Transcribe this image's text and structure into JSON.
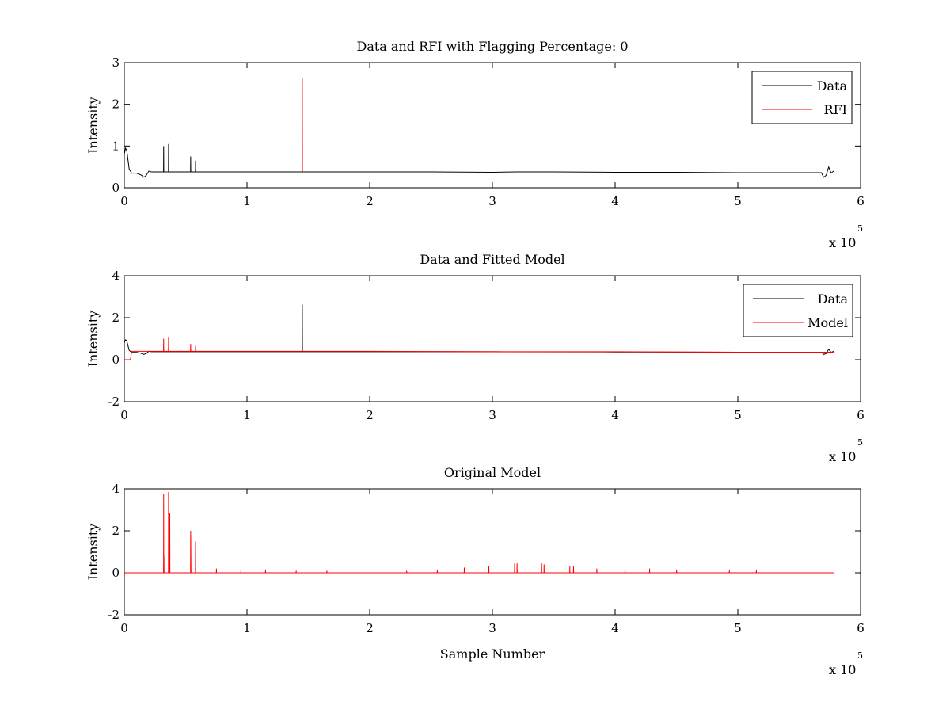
{
  "figure": {
    "background": "#ffffff"
  },
  "chart_data": [
    {
      "type": "line",
      "title": "Data and RFI with Flagging Percentage: 0",
      "xlabel": "",
      "ylabel": "Intensity",
      "xlim": [
        0,
        6
      ],
      "ylim": [
        0,
        3
      ],
      "x_ticks": [
        "0",
        "1",
        "2",
        "3",
        "4",
        "5",
        "6"
      ],
      "y_ticks": [
        "0",
        "1",
        "2",
        "3"
      ],
      "x_multiplier": {
        "base": "x 10",
        "exponent": "5"
      },
      "legend": {
        "placement": "top-right",
        "entries": [
          "Data",
          "RFI"
        ]
      },
      "grid": false,
      "series": [
        {
          "name": "Data",
          "color": "#000000",
          "x": [
            0,
            0.01,
            0.02,
            0.04,
            0.06,
            0.1,
            0.14,
            0.16,
            0.18,
            0.2,
            0.22,
            0.3,
            0.32,
            0.321,
            0.322,
            0.35,
            0.36,
            0.361,
            0.362,
            0.5,
            0.54,
            0.541,
            0.542,
            0.57,
            0.58,
            0.581,
            0.582,
            1.0,
            1.45,
            1.451,
            1.452,
            2.0,
            2.5,
            3.0,
            3.2,
            3.4,
            3.5,
            4.0,
            4.5,
            5.0,
            5.5,
            5.68,
            5.7,
            5.72,
            5.74,
            5.76,
            5.78
          ],
          "y": [
            0.8,
            0.95,
            0.9,
            0.45,
            0.35,
            0.35,
            0.3,
            0.25,
            0.3,
            0.4,
            0.38,
            0.38,
            0.38,
            1.0,
            0.38,
            0.38,
            0.38,
            1.05,
            0.38,
            0.38,
            0.38,
            0.75,
            0.38,
            0.38,
            0.38,
            0.65,
            0.38,
            0.38,
            0.38,
            0.38,
            0.38,
            0.38,
            0.38,
            0.37,
            0.38,
            0.38,
            0.38,
            0.37,
            0.37,
            0.36,
            0.36,
            0.36,
            0.25,
            0.3,
            0.5,
            0.35,
            0.4
          ]
        },
        {
          "name": "RFI",
          "color": "#ff0000",
          "x": [
            1.45,
            1.451,
            1.452
          ],
          "y": [
            0.38,
            2.62,
            0.38
          ]
        }
      ]
    },
    {
      "type": "line",
      "title": "Data and Fitted Model",
      "xlabel": "",
      "ylabel": "Intensity",
      "xlim": [
        0,
        6
      ],
      "ylim": [
        -2,
        4
      ],
      "x_ticks": [
        "0",
        "1",
        "2",
        "3",
        "4",
        "5",
        "6"
      ],
      "y_ticks": [
        "-2",
        "0",
        "2",
        "4"
      ],
      "x_multiplier": {
        "base": "x 10",
        "exponent": "5"
      },
      "legend": {
        "placement": "top-right",
        "entries": [
          "Data",
          "Model"
        ]
      },
      "grid": false,
      "series": [
        {
          "name": "Data",
          "color": "#000000",
          "x": [
            0,
            0.01,
            0.02,
            0.04,
            0.06,
            0.1,
            0.14,
            0.16,
            0.18,
            0.2,
            0.22,
            0.5,
            1.0,
            1.45,
            1.451,
            1.452,
            2.0,
            3.0,
            4.0,
            5.0,
            5.5,
            5.68,
            5.7,
            5.72,
            5.74,
            5.76,
            5.78
          ],
          "y": [
            0.8,
            0.95,
            0.9,
            0.45,
            0.35,
            0.35,
            0.3,
            0.25,
            0.3,
            0.4,
            0.38,
            0.38,
            0.38,
            0.38,
            2.62,
            0.38,
            0.38,
            0.38,
            0.37,
            0.36,
            0.36,
            0.36,
            0.25,
            0.3,
            0.5,
            0.35,
            0.4
          ]
        },
        {
          "name": "Model",
          "color": "#ff0000",
          "x": [
            0,
            0.05,
            0.06,
            0.3,
            0.32,
            0.321,
            0.322,
            0.35,
            0.36,
            0.361,
            0.362,
            0.5,
            0.54,
            0.541,
            0.542,
            0.57,
            0.58,
            0.581,
            0.582,
            1.0,
            2.0,
            3.0,
            4.0,
            5.0,
            5.5,
            5.78
          ],
          "y": [
            0,
            0,
            0.4,
            0.4,
            0.4,
            1.0,
            0.4,
            0.4,
            0.4,
            1.05,
            0.4,
            0.4,
            0.4,
            0.75,
            0.4,
            0.4,
            0.4,
            0.65,
            0.4,
            0.4,
            0.4,
            0.38,
            0.38,
            0.36,
            0.36,
            0.36
          ]
        }
      ]
    },
    {
      "type": "line",
      "title": "Original Model",
      "xlabel": "Sample Number",
      "ylabel": "Intensity",
      "xlim": [
        0,
        6
      ],
      "ylim": [
        -2,
        4
      ],
      "x_ticks": [
        "0",
        "1",
        "2",
        "3",
        "4",
        "5",
        "6"
      ],
      "y_ticks": [
        "-2",
        "0",
        "2",
        "4"
      ],
      "x_multiplier": {
        "base": "x 10",
        "exponent": "5"
      },
      "grid": false,
      "series": [
        {
          "name": "",
          "color": "#ff0000",
          "x": [
            0,
            0.32,
            0.321,
            0.322,
            0.33,
            0.331,
            0.332,
            0.36,
            0.361,
            0.362,
            0.37,
            0.371,
            0.372,
            0.54,
            0.541,
            0.542,
            0.55,
            0.551,
            0.552,
            0.58,
            0.581,
            0.582,
            0.75,
            0.751,
            0.752,
            0.95,
            0.951,
            0.952,
            1.15,
            1.151,
            1.152,
            1.4,
            1.401,
            1.402,
            1.65,
            1.651,
            1.652,
            2.3,
            2.301,
            2.302,
            2.55,
            2.551,
            2.552,
            2.77,
            2.771,
            2.772,
            2.97,
            2.971,
            2.972,
            3.18,
            3.181,
            3.182,
            3.2,
            3.201,
            3.202,
            3.4,
            3.401,
            3.402,
            3.42,
            3.421,
            3.422,
            3.63,
            3.631,
            3.632,
            3.66,
            3.661,
            3.662,
            3.85,
            3.851,
            3.852,
            4.08,
            4.081,
            4.082,
            4.28,
            4.281,
            4.282,
            4.5,
            4.501,
            4.502,
            4.93,
            4.931,
            4.932,
            5.15,
            5.151,
            5.152,
            5.78
          ],
          "y": [
            0,
            0,
            3.75,
            0,
            0,
            0.8,
            0,
            0,
            3.85,
            0,
            0,
            2.85,
            0,
            0,
            2.0,
            0,
            0,
            1.8,
            0,
            0,
            1.5,
            0,
            0,
            0.2,
            0,
            0,
            0.15,
            0,
            0,
            0.12,
            0,
            0,
            0.1,
            0,
            0,
            0.1,
            0,
            0,
            0.1,
            0,
            0,
            0.15,
            0,
            0,
            0.25,
            0,
            0,
            0.3,
            0,
            0,
            0.45,
            0,
            0,
            0.45,
            0,
            0,
            0.45,
            0,
            0,
            0.4,
            0,
            0,
            0.3,
            0,
            0,
            0.3,
            0,
            0,
            0.2,
            0,
            0,
            0.18,
            0,
            0,
            0.2,
            0,
            0,
            0.15,
            0,
            0,
            0.12,
            0,
            0,
            0.15,
            0,
            0
          ]
        }
      ]
    }
  ]
}
